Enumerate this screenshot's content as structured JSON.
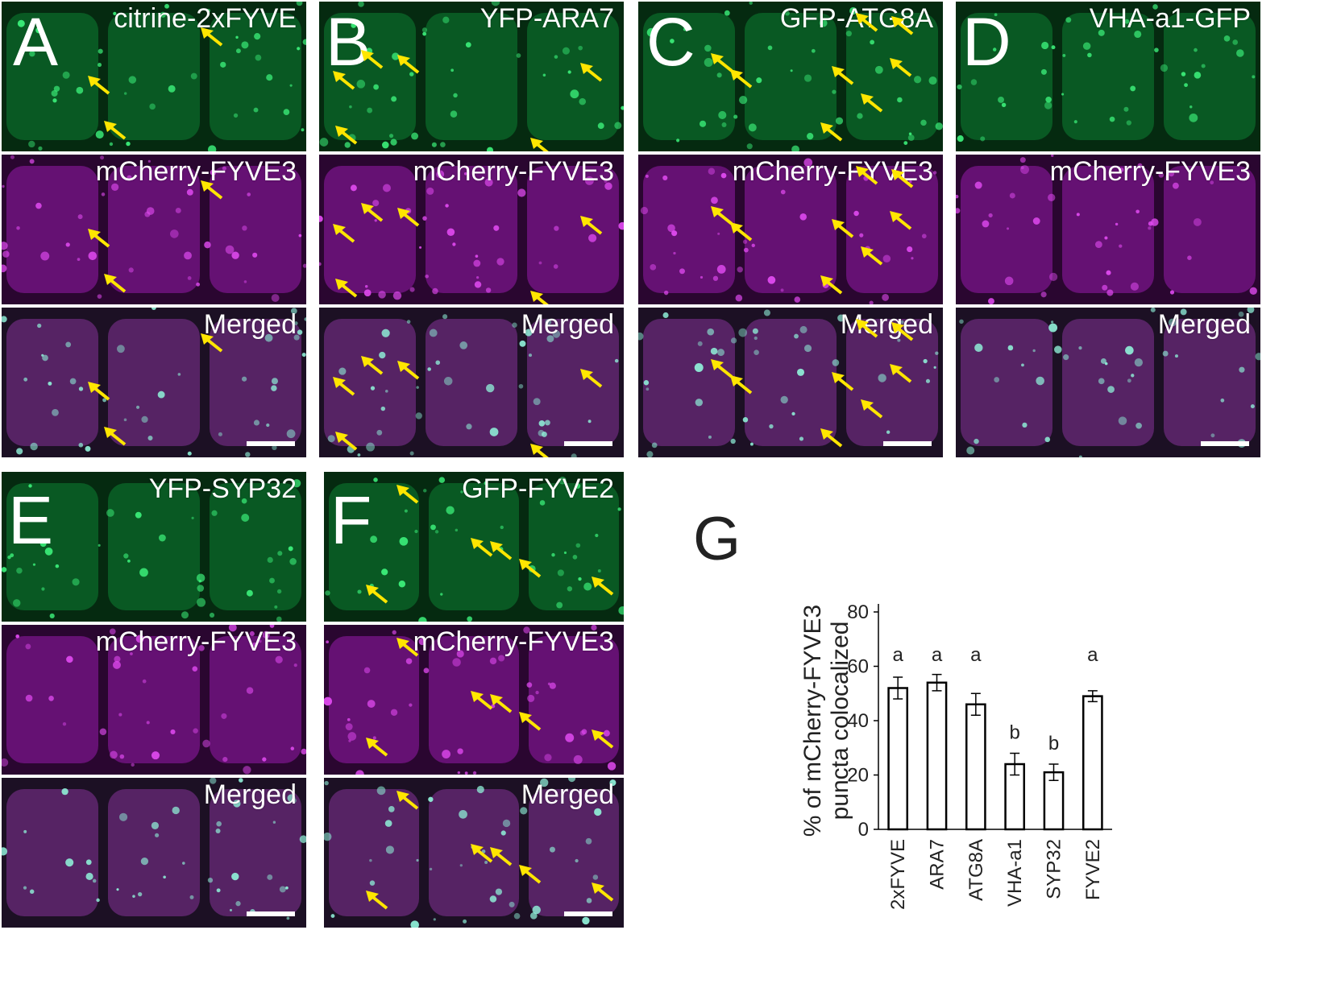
{
  "figure": {
    "panel_letters": [
      "A",
      "B",
      "C",
      "D",
      "E",
      "F",
      "G"
    ],
    "rows": {
      "A": {
        "green": "citrine-2xFYVE",
        "magenta": "mCherry-FYVE3",
        "merged": "Merged"
      },
      "B": {
        "green": "YFP-ARA7",
        "magenta": "mCherry-FYVE3",
        "merged": "Merged"
      },
      "C": {
        "green": "GFP-ATG8A",
        "magenta": "mCherry-FYVE3",
        "merged": "Merged"
      },
      "D": {
        "green": "VHA-a1-GFP",
        "magenta": "mCherry-FYVE3",
        "merged": "Merged"
      },
      "E": {
        "green": "YFP-SYP32",
        "magenta": "mCherry-FYVE3",
        "merged": "Merged"
      },
      "F": {
        "green": "GFP-FYVE2",
        "magenta": "mCherry-FYVE3",
        "merged": "Merged"
      }
    },
    "colors": {
      "green_channel": "#0f9a3a",
      "magenta_channel": "#9a1aa0",
      "merged_tint": "#7fd6c8",
      "arrow": "#ffe600"
    }
  },
  "chart_data": {
    "type": "bar",
    "ylabel": "% of mCherry-FYVE3 puncta colocalized",
    "categories": [
      "2xFYVE",
      "ARA7",
      "ATG8A",
      "VHA-a1",
      "SYP32",
      "FYVE2"
    ],
    "values": [
      52,
      54,
      46,
      24,
      21,
      49
    ],
    "errors": [
      4,
      3,
      4,
      4,
      3,
      2
    ],
    "significance": [
      "a",
      "a",
      "a",
      "b",
      "b",
      "a"
    ],
    "ylim": [
      0,
      80
    ],
    "yticks": [
      0,
      20,
      40,
      60,
      80
    ],
    "bar_fill": "#ffffff",
    "bar_stroke": "#000000"
  }
}
